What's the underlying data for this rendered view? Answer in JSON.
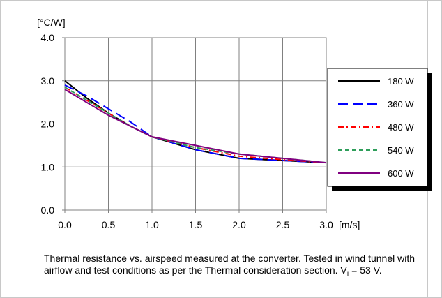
{
  "chart_data": {
    "type": "line",
    "ylabel": "[°C/W]",
    "xlabel": "[m/s]",
    "xlim": [
      0,
      3
    ],
    "ylim": [
      0,
      4
    ],
    "xticks": [
      "0.0",
      "0.5",
      "1.0",
      "1.5",
      "2.0",
      "2.5",
      "3.0"
    ],
    "yticks": [
      "0.0",
      "1.0",
      "2.0",
      "3.0",
      "4.0"
    ],
    "grid": true,
    "legend_position": "right",
    "series": [
      {
        "name": "180 W",
        "color": "#000000",
        "dash": "solid",
        "x": [
          0,
          0.25,
          0.5,
          0.75,
          1.0,
          1.5,
          2.0,
          2.5,
          3.0
        ],
        "y": [
          3.0,
          2.6,
          2.25,
          1.95,
          1.7,
          1.4,
          1.2,
          1.15,
          1.1
        ]
      },
      {
        "name": "360 W",
        "color": "#0000ff",
        "dash": "long-dash",
        "x": [
          0,
          0.25,
          0.5,
          0.75,
          1.0,
          1.5,
          2.0,
          2.5,
          3.0
        ],
        "y": [
          2.9,
          2.65,
          2.35,
          2.05,
          1.7,
          1.4,
          1.2,
          1.15,
          1.1
        ]
      },
      {
        "name": "480 W",
        "color": "#ff0000",
        "dash": "dash-dot",
        "x": [
          0,
          0.25,
          0.5,
          0.75,
          1.0,
          1.5,
          2.0,
          2.5,
          3.0
        ],
        "y": [
          2.85,
          2.55,
          2.25,
          1.95,
          1.7,
          1.45,
          1.25,
          1.17,
          1.1
        ]
      },
      {
        "name": "540 W",
        "color": "#2e9e5a",
        "dash": "dash",
        "x": [
          0,
          0.25,
          0.5,
          0.75,
          1.0,
          1.5,
          2.0,
          2.5,
          3.0
        ],
        "y": [
          2.85,
          2.55,
          2.25,
          1.95,
          1.7,
          1.45,
          1.3,
          1.2,
          1.1
        ]
      },
      {
        "name": "600 W",
        "color": "#800080",
        "dash": "solid",
        "x": [
          0,
          0.25,
          0.5,
          0.75,
          1.0,
          1.5,
          2.0,
          2.5,
          3.0
        ],
        "y": [
          2.8,
          2.5,
          2.2,
          1.95,
          1.7,
          1.5,
          1.3,
          1.2,
          1.1
        ]
      }
    ]
  },
  "caption": {
    "text": "Thermal resistance vs. airspeed measured at the converter. Tested in wind tunnel with airflow and test conditions as per the Thermal consideration section. V",
    "subscript": "I",
    "tail": " = 53 V."
  }
}
